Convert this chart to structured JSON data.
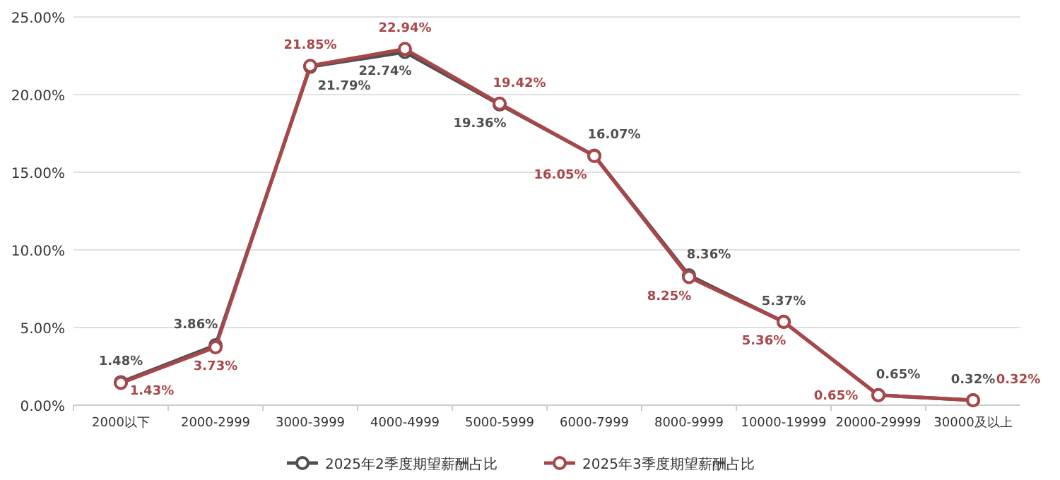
{
  "chart_data": {
    "type": "line",
    "categories": [
      "2000以下",
      "2000-2999",
      "3000-3999",
      "4000-4999",
      "5000-5999",
      "6000-7999",
      "8000-9999",
      "10000-19999",
      "20000-29999",
      "30000及以上"
    ],
    "series": [
      {
        "name": "2025年2季度期望薪酬占比",
        "color": "#505050",
        "values": [
          1.48,
          3.86,
          21.79,
          22.74,
          19.36,
          16.07,
          8.36,
          5.37,
          0.65,
          0.32
        ],
        "value_labels": [
          "1.48%",
          "3.86%",
          "21.79%",
          "22.74%",
          "19.36%",
          "16.07%",
          "8.36%",
          "5.37%",
          "0.65%",
          "0.32%"
        ]
      },
      {
        "name": "2025年3季度期望薪酬占比",
        "color": "#a8474a",
        "values": [
          1.43,
          3.73,
          21.85,
          22.94,
          19.42,
          16.05,
          8.25,
          5.36,
          0.65,
          0.32
        ],
        "value_labels": [
          "1.43%",
          "3.73%",
          "21.85%",
          "22.94%",
          "19.42%",
          "16.05%",
          "8.25%",
          "5.36%",
          "0.65%",
          "0.32%"
        ]
      }
    ],
    "ylim": [
      0,
      25
    ],
    "yticks": [
      {
        "value": 0,
        "label": "0.00%"
      },
      {
        "value": 5,
        "label": "5.00%"
      },
      {
        "value": 10,
        "label": "10.00%"
      },
      {
        "value": 15,
        "label": "15.00%"
      },
      {
        "value": 20,
        "label": "20.00%"
      },
      {
        "value": 25,
        "label": "25.00%"
      }
    ],
    "grid": "y",
    "legend": "bottom",
    "marker": "circle",
    "line_style": "solid"
  }
}
